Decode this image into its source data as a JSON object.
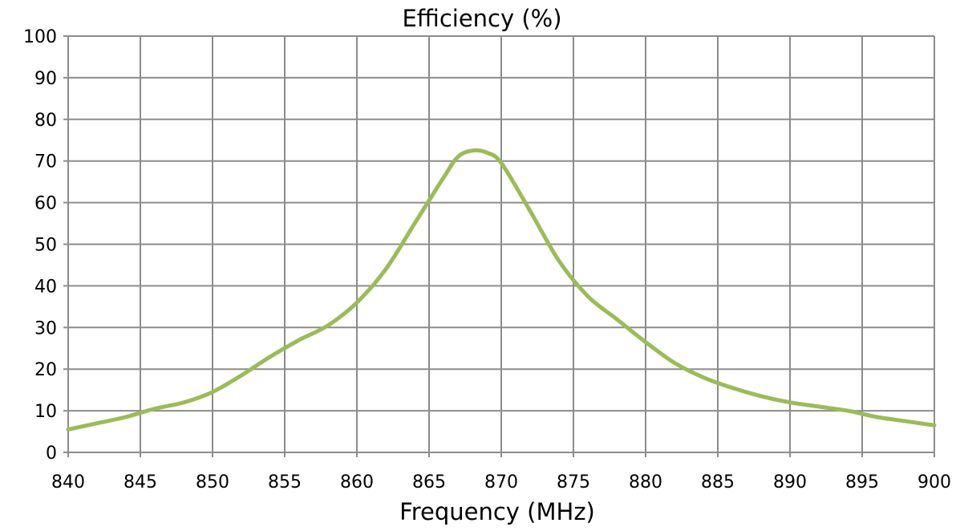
{
  "chart_data": {
    "type": "line",
    "title": "Efficiency (%)",
    "xlabel": "Frequency (MHz)",
    "ylabel": "",
    "xlim": [
      840,
      900
    ],
    "ylim": [
      0,
      100
    ],
    "xticks": [
      840,
      845,
      850,
      855,
      860,
      865,
      870,
      875,
      880,
      885,
      890,
      895,
      900
    ],
    "yticks": [
      0,
      10,
      20,
      30,
      40,
      50,
      60,
      70,
      80,
      90,
      100
    ],
    "grid": true,
    "legend": "none",
    "series": [
      {
        "color": "#9bbb59",
        "x": [
          840,
          842,
          844,
          846,
          848,
          850,
          852,
          854,
          856,
          858,
          860,
          862,
          864,
          866,
          867,
          868,
          869,
          870,
          872,
          874,
          876,
          878,
          880,
          882,
          884,
          886,
          888,
          890,
          892,
          894,
          896,
          898,
          900
        ],
        "y": [
          5.5,
          7,
          8.5,
          10.5,
          12,
          14.5,
          18.5,
          23,
          27,
          30.5,
          36,
          44,
          55,
          66,
          71,
          72.5,
          72,
          69.5,
          58,
          46,
          37.5,
          32,
          26.5,
          21.5,
          18,
          15.5,
          13.5,
          12,
          11,
          10,
          8.5,
          7.5,
          6.5
        ]
      }
    ]
  }
}
